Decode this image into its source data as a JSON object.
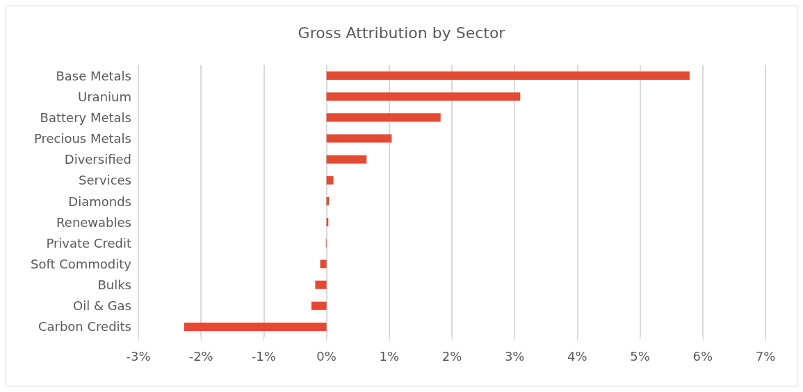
{
  "chart_data": {
    "type": "bar",
    "orientation": "horizontal",
    "title": "Gross Attribution by Sector",
    "categories": [
      "Base Metals",
      "Uranium",
      "Battery Metals",
      "Precious Metals",
      "Diversified",
      "Services",
      "Diamonds",
      "Renewables",
      "Private Credit",
      "Soft Commodity",
      "Bulks",
      "Oil & Gas",
      "Carbon Credits"
    ],
    "values": [
      5.79,
      3.09,
      1.82,
      1.04,
      0.64,
      0.11,
      0.04,
      0.03,
      -0.01,
      -0.1,
      -0.18,
      -0.24,
      -2.27
    ],
    "color": "#e34a33",
    "xlim": [
      -3,
      7
    ],
    "xticks": [
      {
        "value": -3,
        "label": "-3%"
      },
      {
        "value": -2,
        "label": "-2%"
      },
      {
        "value": -1,
        "label": "-1%"
      },
      {
        "value": 0,
        "label": "0%"
      },
      {
        "value": 1,
        "label": "1%"
      },
      {
        "value": 2,
        "label": "2%"
      },
      {
        "value": 3,
        "label": "3%"
      },
      {
        "value": 4,
        "label": "4%"
      },
      {
        "value": 5,
        "label": "5%"
      },
      {
        "value": 6,
        "label": "6%"
      },
      {
        "value": 7,
        "label": "7%"
      }
    ],
    "grid": "x"
  }
}
